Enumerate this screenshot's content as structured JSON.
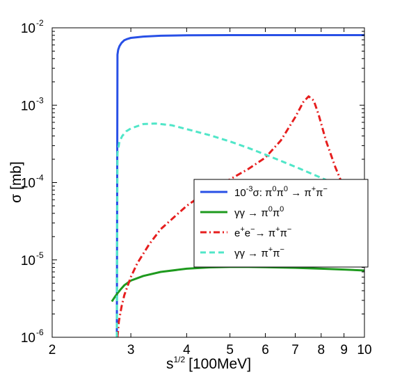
{
  "chart_data": {
    "type": "line",
    "title": "",
    "xlabel": "s^{1/2} [100MeV]",
    "xlabel_base": "s",
    "xlabel_exp": "1/2",
    "xlabel_unit": "[100MeV]",
    "ylabel": "σ [mb]",
    "xscale": "log",
    "yscale": "log",
    "xlim": [
      2,
      10
    ],
    "ylim": [
      1e-06,
      0.01
    ],
    "x_ticks": [
      2,
      3,
      4,
      5,
      6,
      7,
      8,
      9,
      10
    ],
    "x_tick_labels": [
      "2",
      "3",
      "4",
      "5",
      "6",
      "7",
      "8",
      "9",
      "10"
    ],
    "y_ticks": [
      1e-06,
      1e-05,
      0.0001,
      0.001,
      0.01
    ],
    "y_tick_labels": [
      {
        "base": "10",
        "exp": "-6"
      },
      {
        "base": "10",
        "exp": "-5"
      },
      {
        "base": "10",
        "exp": "-4"
      },
      {
        "base": "10",
        "exp": "-3"
      },
      {
        "base": "10",
        "exp": "-2"
      }
    ],
    "grid": false,
    "legend_position": "center-right",
    "series": [
      {
        "name": "10^{-3}σ: π^0π^0 → π^+π^-",
        "legend": [
          {
            "t": "10",
            "s": ""
          },
          {
            "t": "-3",
            "s": "sup"
          },
          {
            "t": "σ: π",
            "s": ""
          },
          {
            "t": "0",
            "s": "sup"
          },
          {
            "t": "π",
            "s": ""
          },
          {
            "t": "0",
            "s": "sup"
          },
          {
            "t": " → π",
            "s": ""
          },
          {
            "t": "+",
            "s": "sup"
          },
          {
            "t": "π",
            "s": ""
          },
          {
            "t": "−",
            "s": "sup"
          }
        ],
        "color": "#2850e6",
        "style": "solid",
        "x": [
          2.791,
          2.8,
          2.81,
          2.83,
          2.86,
          2.9,
          2.95,
          3.0,
          3.2,
          3.5,
          4.0,
          5.0,
          6.0,
          7.0,
          8.0,
          9.0,
          10.0
        ],
        "y": [
          1e-06,
          0.0045,
          0.0052,
          0.0058,
          0.0064,
          0.0069,
          0.0072,
          0.0074,
          0.0077,
          0.0079,
          0.008,
          0.00805,
          0.00805,
          0.00805,
          0.00805,
          0.00805,
          0.00805
        ]
      },
      {
        "name": "γγ → π^0π^0",
        "legend": [
          {
            "t": "γγ → π",
            "s": ""
          },
          {
            "t": "0",
            "s": "sup"
          },
          {
            "t": "π",
            "s": ""
          },
          {
            "t": "0",
            "s": "sup"
          }
        ],
        "color": "#1e9a1e",
        "style": "solid",
        "x": [
          2.72,
          2.76,
          2.8,
          2.85,
          2.9,
          3.0,
          3.2,
          3.5,
          4.0,
          4.5,
          5.0,
          5.5,
          6.0,
          7.0,
          8.0,
          9.0,
          10.0
        ],
        "y": [
          2.9e-06,
          3.3e-06,
          3.7e-06,
          4.2e-06,
          4.7e-06,
          5.4e-06,
          6.2e-06,
          7e-06,
          7.7e-06,
          8e-06,
          8.1e-06,
          8.1e-06,
          8.05e-06,
          7.9e-06,
          7.7e-06,
          7.5e-06,
          7.3e-06
        ]
      },
      {
        "name": "e^+e^- → π^+π^-",
        "legend": [
          {
            "t": "e",
            "s": ""
          },
          {
            "t": "+",
            "s": "sup"
          },
          {
            "t": "e",
            "s": ""
          },
          {
            "t": "−",
            "s": "sup"
          },
          {
            "t": "→ π",
            "s": ""
          },
          {
            "t": "+",
            "s": "sup"
          },
          {
            "t": "π",
            "s": ""
          },
          {
            "t": "−",
            "s": "sup"
          }
        ],
        "color": "#e61e1e",
        "style": "dashdot",
        "x": [
          2.8,
          2.82,
          2.86,
          2.9,
          3.0,
          3.1,
          3.3,
          3.5,
          4.0,
          4.5,
          5.0,
          5.5,
          6.0,
          6.5,
          7.0,
          7.3,
          7.5,
          7.7,
          7.9,
          8.2,
          8.6,
          9.0,
          9.5,
          10.0
        ],
        "y": [
          1e-06,
          1.6e-06,
          2.5e-06,
          3.5e-06,
          6e-06,
          9e-06,
          1.6e-05,
          2.5e-05,
          5e-05,
          8e-05,
          0.00011,
          0.00015,
          0.00021,
          0.00035,
          0.0007,
          0.0011,
          0.0013,
          0.00115,
          0.00075,
          0.00035,
          0.00016,
          8.5e-05,
          5.5e-05,
          4e-05
        ]
      },
      {
        "name": "γγ → π^+π^-",
        "legend": [
          {
            "t": "γγ → π",
            "s": ""
          },
          {
            "t": "+",
            "s": "sup"
          },
          {
            "t": "π",
            "s": ""
          },
          {
            "t": "−",
            "s": "sup"
          }
        ],
        "color": "#50e6c8",
        "style": "dashed",
        "x": [
          2.791,
          2.8,
          2.83,
          2.87,
          2.93,
          3.0,
          3.2,
          3.4,
          3.7,
          4.0,
          4.5,
          5.0,
          5.5,
          6.0,
          7.0,
          8.0,
          9.0,
          10.0
        ],
        "y": [
          1e-06,
          0.00024,
          0.00034,
          0.0004,
          0.00046,
          0.0005,
          0.00057,
          0.00058,
          0.00055,
          0.00049,
          0.00041,
          0.00034,
          0.00028,
          0.00023,
          0.00016,
          0.000115,
          8.6e-05,
          6.5e-05
        ]
      }
    ]
  }
}
